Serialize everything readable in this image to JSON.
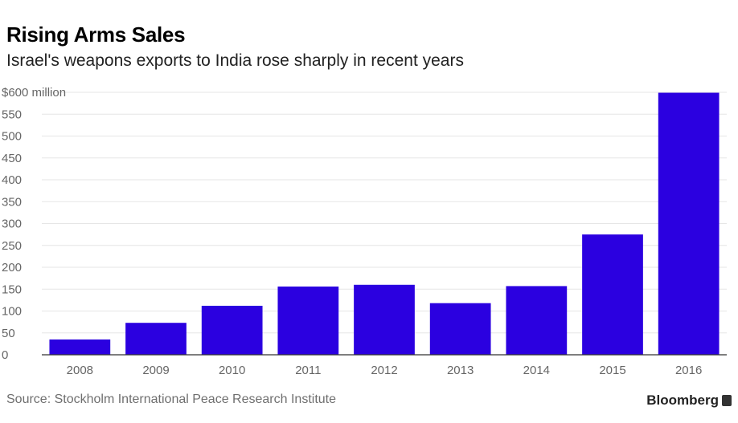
{
  "header": {
    "title": "Rising Arms Sales",
    "subtitle": "Israel's weapons exports to India rose sharply in recent years"
  },
  "footer": {
    "source": "Source: Stockholm International Peace Research Institute",
    "brand": "Bloomberg"
  },
  "colors": {
    "bar": "#2b00e0",
    "grid": "#e6e6e6",
    "axis": "#333333"
  },
  "chart_data": {
    "type": "bar",
    "title": "Rising Arms Sales",
    "subtitle": "Israel's weapons exports to India rose sharply in recent years",
    "categories": [
      "2008",
      "2009",
      "2010",
      "2011",
      "2012",
      "2013",
      "2014",
      "2015",
      "2016"
    ],
    "values": [
      35,
      73,
      112,
      156,
      160,
      118,
      157,
      275,
      599
    ],
    "ylim": [
      0,
      600
    ],
    "yticks": [
      0,
      50,
      100,
      150,
      200,
      250,
      300,
      350,
      400,
      450,
      500,
      550,
      600
    ],
    "ytick_labels": [
      "0",
      "50",
      "100",
      "150",
      "200",
      "250",
      "300",
      "350",
      "400",
      "450",
      "500",
      "550",
      "$600 million"
    ],
    "xlabel": "",
    "ylabel": "",
    "grid": true
  }
}
